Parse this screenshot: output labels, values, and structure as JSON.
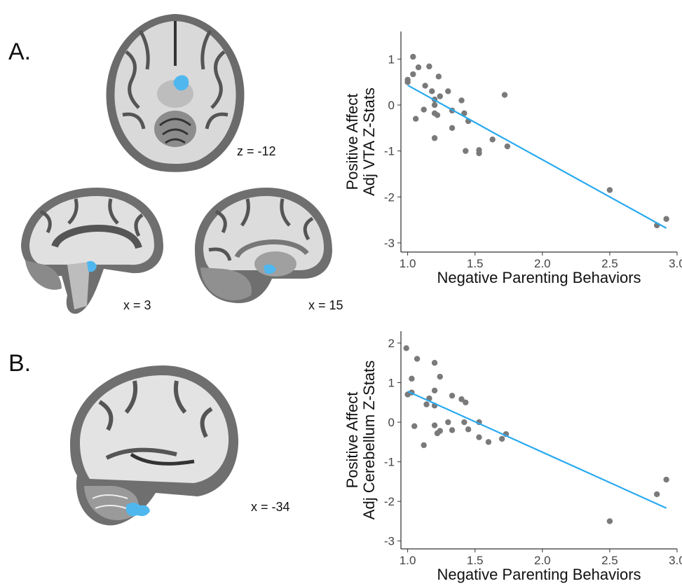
{
  "panels": {
    "a": {
      "label": "A."
    },
    "b": {
      "label": "B."
    }
  },
  "slices": {
    "axial": "z = -12",
    "sag_midline": "x = 3",
    "sag_right": "x = 15",
    "sag_cereb": "x = -34"
  },
  "colors": {
    "fit_line": "#29aaf0",
    "points": "#7a7a7a",
    "highlight": "#4fb7ee"
  },
  "chart_data": [
    {
      "type": "scatter",
      "title": "",
      "xlabel": "Negative Parenting Behaviors",
      "ylabel": [
        "Positive Affect",
        "Adj VTA Z-Stats"
      ],
      "xlim": [
        0.95,
        3.0
      ],
      "ylim": [
        -3.2,
        1.6
      ],
      "xticks": [
        1.0,
        1.5,
        2.0,
        2.5,
        3.0
      ],
      "xtick_labels": [
        "1.0",
        "1.5",
        "2.0",
        "2.5",
        "3.0"
      ],
      "yticks": [
        1,
        0,
        -1,
        -2,
        -3
      ],
      "ytick_labels": [
        "1",
        "0",
        "-1",
        "-2",
        "-3"
      ],
      "grid": false,
      "points": [
        [
          1.0,
          0.5
        ],
        [
          1.0,
          0.55
        ],
        [
          1.04,
          0.67
        ],
        [
          1.04,
          1.05
        ],
        [
          1.06,
          -0.3
        ],
        [
          1.08,
          0.82
        ],
        [
          1.12,
          -0.1
        ],
        [
          1.13,
          0.42
        ],
        [
          1.16,
          0.84
        ],
        [
          1.18,
          0.3
        ],
        [
          1.2,
          0.12
        ],
        [
          1.2,
          0.0
        ],
        [
          1.2,
          -0.72
        ],
        [
          1.2,
          -0.18
        ],
        [
          1.22,
          -0.22
        ],
        [
          1.23,
          0.62
        ],
        [
          1.24,
          0.19
        ],
        [
          1.3,
          0.3
        ],
        [
          1.33,
          -0.12
        ],
        [
          1.33,
          -0.5
        ],
        [
          1.4,
          0.1
        ],
        [
          1.42,
          -0.18
        ],
        [
          1.43,
          -1.0
        ],
        [
          1.45,
          -0.35
        ],
        [
          1.53,
          -0.98
        ],
        [
          1.53,
          -1.05
        ],
        [
          1.63,
          -0.75
        ],
        [
          1.72,
          0.22
        ],
        [
          1.74,
          -0.9
        ],
        [
          2.5,
          -1.85
        ],
        [
          2.85,
          -2.62
        ],
        [
          2.92,
          -2.48
        ]
      ],
      "fit": [
        [
          1.0,
          0.43
        ],
        [
          2.92,
          -2.68
        ]
      ]
    },
    {
      "type": "scatter",
      "title": "",
      "xlabel": "Negative Parenting Behaviors",
      "ylabel": [
        "Positive Affect",
        "Adj Cerebellum Z-Stats"
      ],
      "xlim": [
        0.95,
        3.0
      ],
      "ylim": [
        -3.2,
        2.3
      ],
      "xticks": [
        1.0,
        1.5,
        2.0,
        2.5,
        3.0
      ],
      "xtick_labels": [
        "1.0",
        "1.5",
        "2.0",
        "2.5",
        "3.0"
      ],
      "yticks": [
        2,
        1,
        0,
        -1,
        -2,
        -3
      ],
      "ytick_labels": [
        "2",
        "1",
        "0",
        "-1",
        "-2",
        "-3"
      ],
      "grid": false,
      "points": [
        [
          0.99,
          1.87
        ],
        [
          1.0,
          0.7
        ],
        [
          1.03,
          1.1
        ],
        [
          1.03,
          0.75
        ],
        [
          1.05,
          -0.1
        ],
        [
          1.07,
          1.6
        ],
        [
          1.12,
          -0.58
        ],
        [
          1.14,
          0.45
        ],
        [
          1.16,
          0.6
        ],
        [
          1.2,
          1.5
        ],
        [
          1.2,
          0.8
        ],
        [
          1.2,
          0.42
        ],
        [
          1.2,
          -0.08
        ],
        [
          1.22,
          -0.28
        ],
        [
          1.24,
          1.15
        ],
        [
          1.24,
          -0.22
        ],
        [
          1.3,
          0.0
        ],
        [
          1.33,
          0.67
        ],
        [
          1.33,
          -0.2
        ],
        [
          1.4,
          0.58
        ],
        [
          1.42,
          0.0
        ],
        [
          1.43,
          0.5
        ],
        [
          1.45,
          -0.18
        ],
        [
          1.53,
          -0.38
        ],
        [
          1.53,
          0.0
        ],
        [
          1.6,
          -0.5
        ],
        [
          1.7,
          -0.42
        ],
        [
          1.73,
          -0.3
        ],
        [
          2.5,
          -2.5
        ],
        [
          2.85,
          -1.82
        ],
        [
          2.92,
          -1.45
        ]
      ],
      "fit": [
        [
          1.0,
          0.78
        ],
        [
          2.92,
          -2.17
        ]
      ]
    }
  ]
}
